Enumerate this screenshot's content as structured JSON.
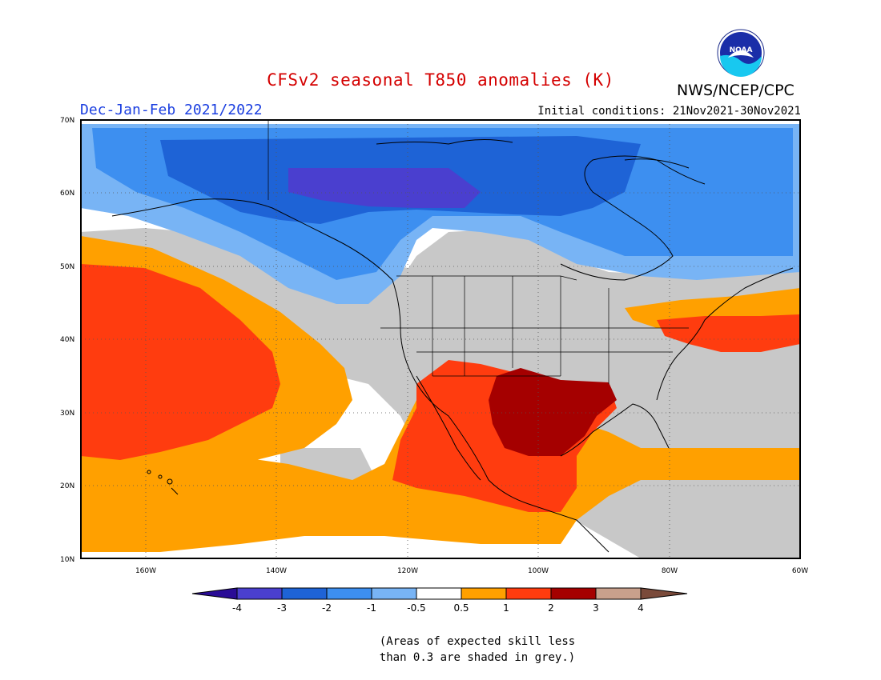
{
  "header": {
    "title": "CFSv2 seasonal T850 anomalies (K)",
    "season": "Dec-Jan-Feb 2021/2022",
    "initial_conditions": "Initial conditions: 21Nov2021-30Nov2021",
    "agency": "NWS/NCEP/CPC",
    "logo_text": "NOAA"
  },
  "map": {
    "lat_labels": [
      "70N",
      "60N",
      "50N",
      "40N",
      "30N",
      "20N",
      "10N"
    ],
    "lon_labels": [
      "160W",
      "140W",
      "120W",
      "100W",
      "80W",
      "60W"
    ],
    "colors": {
      "lt_neg4": "#2a0c96",
      "neg4_neg3": "#4a3fcf",
      "neg3_neg2": "#1e63d6",
      "neg2_neg1": "#3d8ff0",
      "neg1_neg05": "#78b4f5",
      "neutral": "#ffffff",
      "pos05_1": "#ffa000",
      "pos1_2": "#ff3c0f",
      "pos2_3": "#a50000",
      "pos3_4": "#c8a08c",
      "gt_4": "#7a4a3a",
      "low_skill": "#c8c8c8"
    }
  },
  "legend": {
    "labels": [
      "-4",
      "-3",
      "-2",
      "-1",
      "-0.5",
      "0.5",
      "1",
      "2",
      "3",
      "4"
    ],
    "colors": [
      "#4a3fcf",
      "#1e63d6",
      "#3d8ff0",
      "#78b4f5",
      "#ffffff",
      "#ffa000",
      "#ff3c0f",
      "#a50000",
      "#c8a08c"
    ],
    "end_left": "#2a0c96",
    "end_right": "#7a4a3a"
  },
  "note": {
    "line1": "(Areas of expected skill less",
    "line2": "than 0.3 are shaded in grey.)"
  }
}
